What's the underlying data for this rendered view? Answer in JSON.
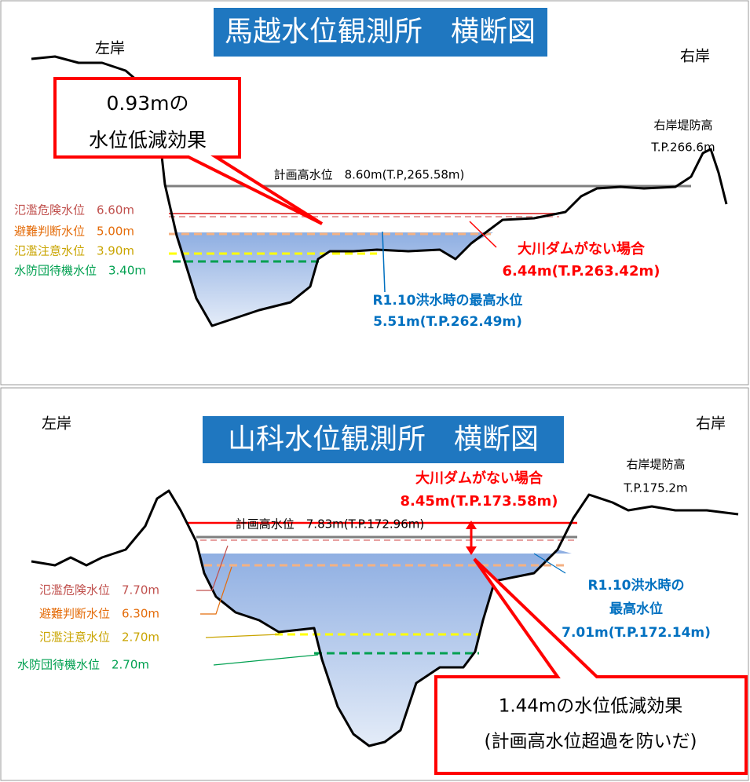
{
  "panels": [
    {
      "title": "馬越水位観測所　横断図",
      "left_bank": "左岸",
      "right_bank": "右岸",
      "levee": [
        "右岸堤防高",
        "T.P.266.6m"
      ],
      "plan_level": "計画高水位　8.60m(T.P,265.58m)",
      "levels": [
        "氾濫危険水位　6.60m",
        "避難判断水位　5.00m",
        "氾濫注意水位　3.90m",
        "水防団待機水位　3.40m"
      ],
      "no_dam": [
        "大川ダムがない場合",
        "6.44m(T.P.263.42m)"
      ],
      "r1": [
        "R1.10洪水時の最高水位",
        "5.51m(T.P.262.49m)"
      ],
      "callout": [
        "0.93mの",
        "水位低減効果"
      ]
    },
    {
      "title": "山科水位観測所　横断図",
      "left_bank": "左岸",
      "right_bank": "右岸",
      "levee": [
        "右岸堤防高",
        "T.P.175.2m"
      ],
      "plan_level": "計画高水位　7.83m(T.P.172.96m)",
      "levels": [
        "氾濫危険水位　7.70m",
        "避難判断水位　6.30m",
        "氾濫注意水位　2.70m",
        "水防団待機水位　2.70m"
      ],
      "no_dam": [
        "大川ダムがない場合",
        "8.45m(T.P.173.58m)"
      ],
      "r1": [
        "R1.10洪水時の",
        "最高水位",
        "7.01m(T.P.172.14m)"
      ],
      "callout": [
        "1.44mの水位低減効果",
        "(計画高水位超過を防いだ)"
      ]
    }
  ]
}
